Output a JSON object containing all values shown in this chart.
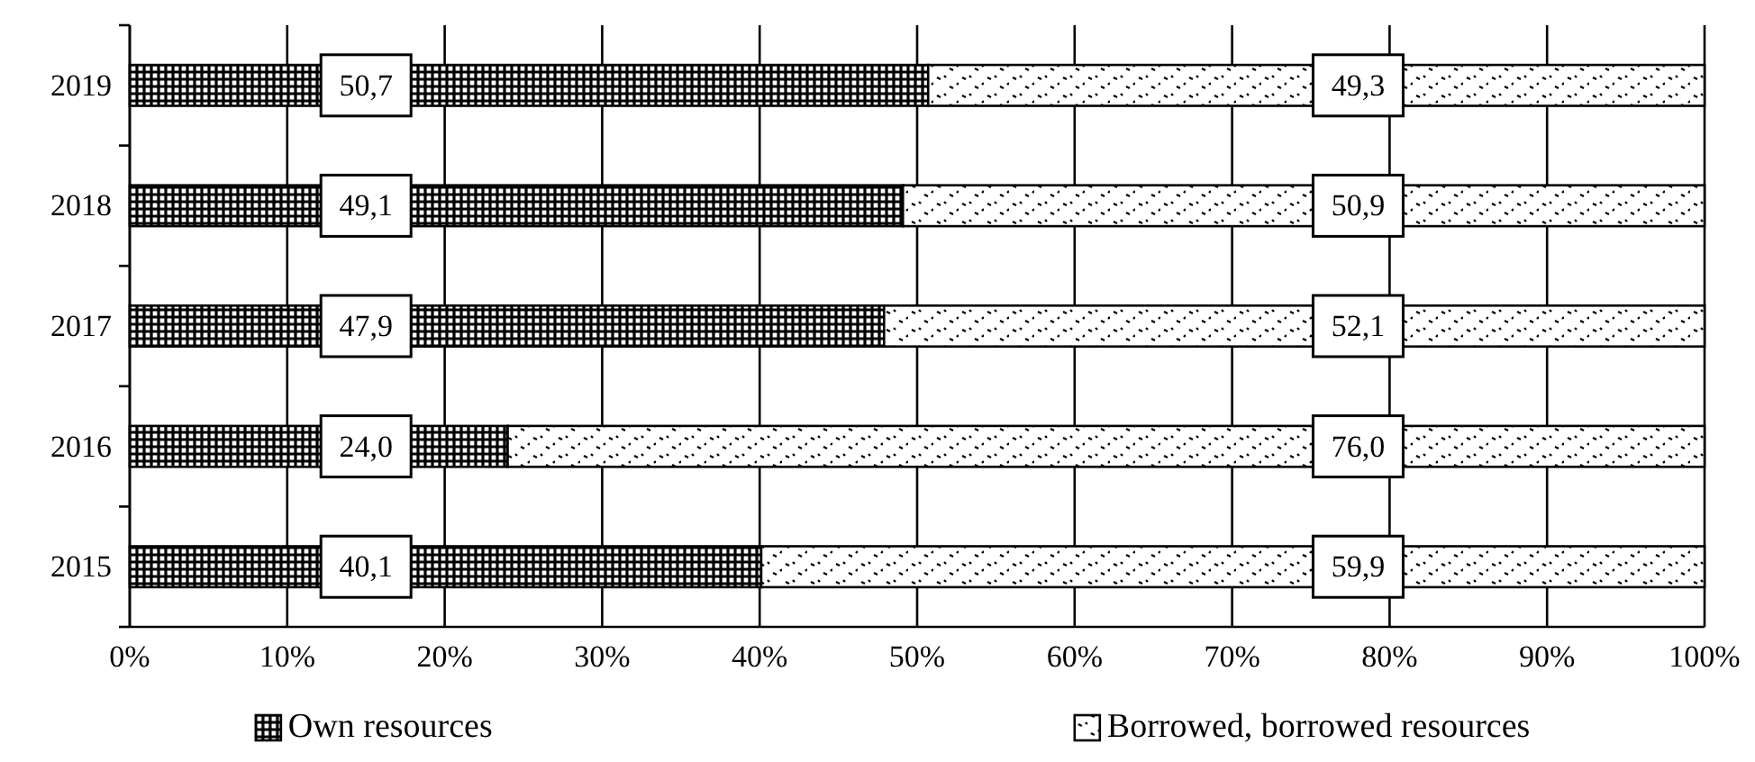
{
  "chart_data": {
    "type": "bar",
    "orientation": "horizontal",
    "stacked": true,
    "categories": [
      "2019",
      "2018",
      "2017",
      "2016",
      "2015"
    ],
    "series": [
      {
        "name": "Own resources",
        "color": "#000000",
        "values": [
          50.7,
          49.1,
          47.9,
          24.0,
          40.1
        ],
        "value_labels": [
          "50,7",
          "49,1",
          "47,9",
          "24,0",
          "40,1"
        ]
      },
      {
        "name": "Borrowed, borrowed resources",
        "color": "#000000",
        "values": [
          49.3,
          50.9,
          52.1,
          76.0,
          59.9
        ],
        "value_labels": [
          "49,3",
          "50,9",
          "52,1",
          "76,0",
          "59,9"
        ]
      }
    ],
    "xlim": [
      0,
      100
    ],
    "xticks": [
      {
        "value": 0,
        "label": "0%"
      },
      {
        "value": 10,
        "label": "10%"
      },
      {
        "value": 20,
        "label": "20%"
      },
      {
        "value": 30,
        "label": "30%"
      },
      {
        "value": 40,
        "label": "40%"
      },
      {
        "value": 50,
        "label": "50%"
      },
      {
        "value": 60,
        "label": "60%"
      },
      {
        "value": 70,
        "label": "70%"
      },
      {
        "value": 80,
        "label": "80%"
      },
      {
        "value": 90,
        "label": "90%"
      },
      {
        "value": 100,
        "label": "100%"
      }
    ],
    "grid": "x",
    "legend": "bottom"
  }
}
